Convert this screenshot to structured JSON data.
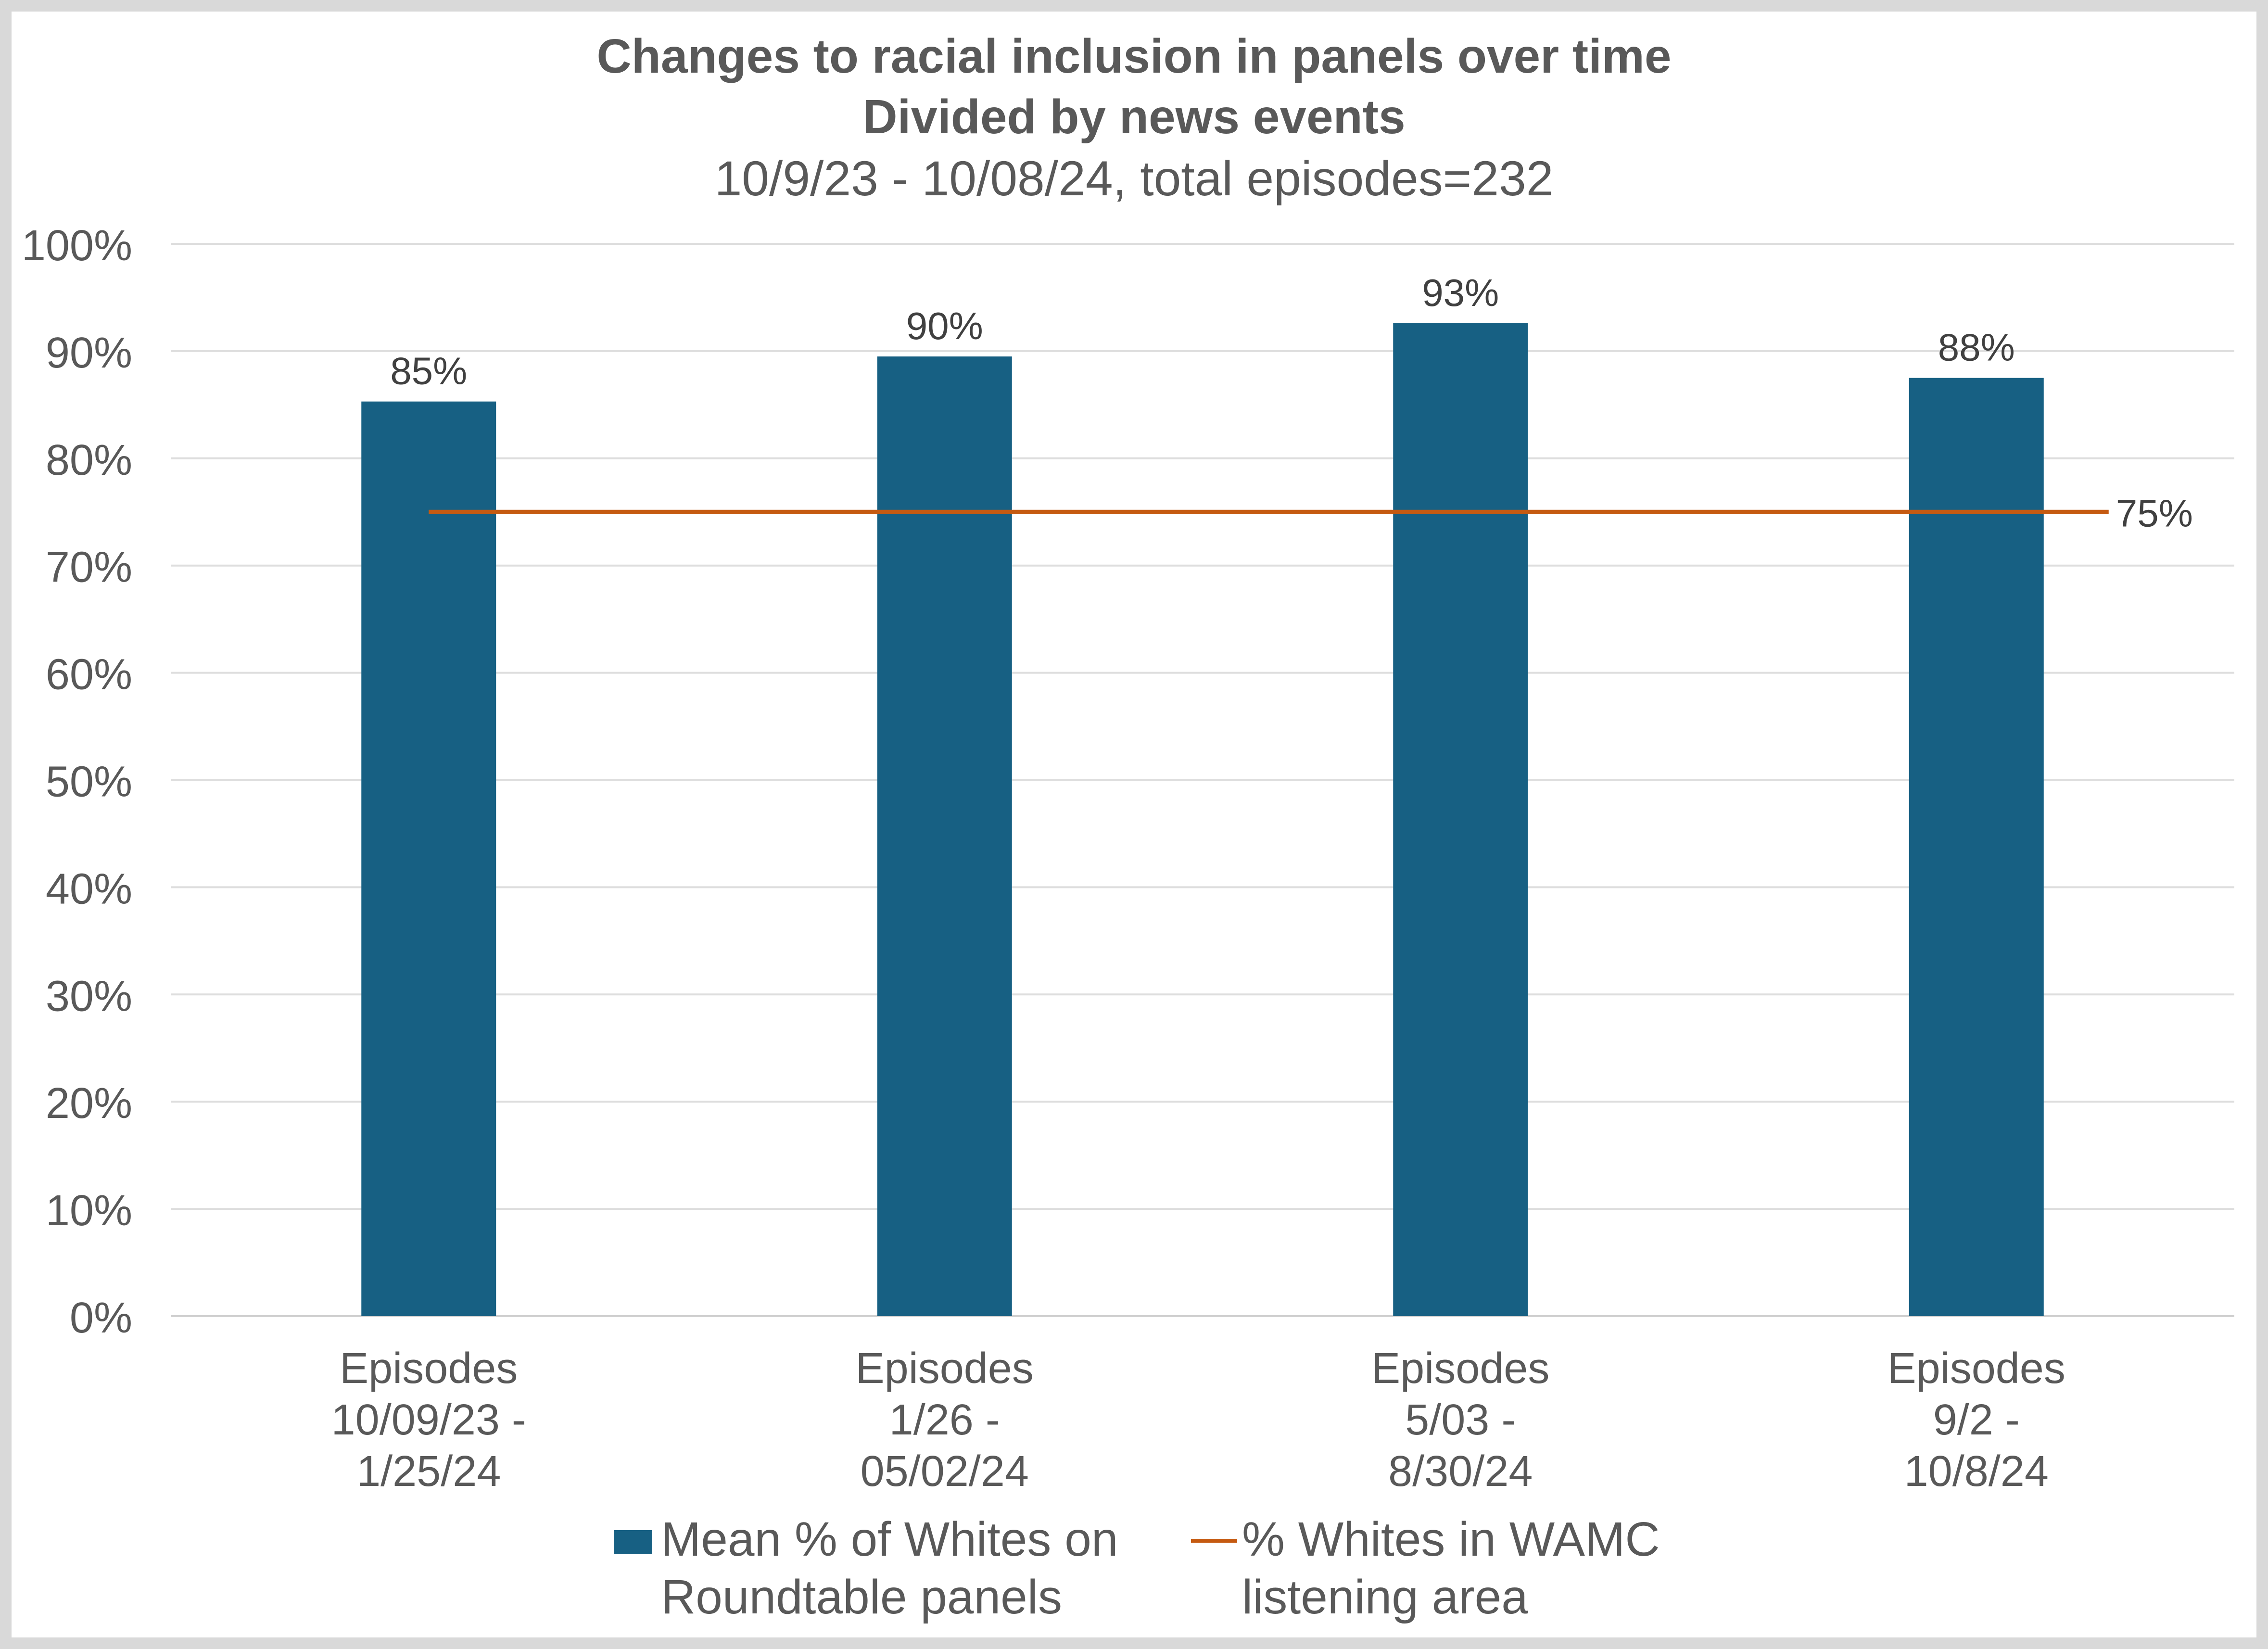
{
  "chart_data": {
    "type": "bar",
    "title": "Changes to racial inclusion in panels over time",
    "subtitle": "Divided by news events",
    "subtitle2": "10/9/23 - 10/08/24, total episodes=232",
    "categories": [
      [
        "Episodes",
        "10/09/23 -",
        "1/25/24"
      ],
      [
        "Episodes",
        "1/26 -",
        "05/02/24"
      ],
      [
        "Episodes",
        "5/03 -",
        "8/30/24"
      ],
      [
        "Episodes",
        "9/2 -",
        "10/8/24"
      ]
    ],
    "series": [
      {
        "name": "Mean % of Whites on Roundtable panels",
        "legend_lines": [
          "Mean % of Whites on",
          "Roundtable panels"
        ],
        "type": "bar",
        "color": "#176083",
        "values": [
          85.3,
          89.5,
          92.6,
          87.5
        ],
        "data_labels": [
          "85%",
          "90%",
          "93%",
          "88%"
        ]
      },
      {
        "name": "% Whites in WAMC listening area",
        "legend_lines": [
          "% Whites in WAMC",
          "listening area"
        ],
        "type": "line",
        "color": "#c55a11",
        "values": [
          75,
          75,
          75,
          75
        ],
        "data_label": "75%"
      }
    ],
    "ylim": [
      0,
      100
    ],
    "yticks": [
      0,
      10,
      20,
      30,
      40,
      50,
      60,
      70,
      80,
      90,
      100
    ],
    "ytick_labels": [
      "0%",
      "10%",
      "20%",
      "30%",
      "40%",
      "50%",
      "60%",
      "70%",
      "80%",
      "90%",
      "100%"
    ],
    "grid": true,
    "legend_position": "bottom"
  }
}
